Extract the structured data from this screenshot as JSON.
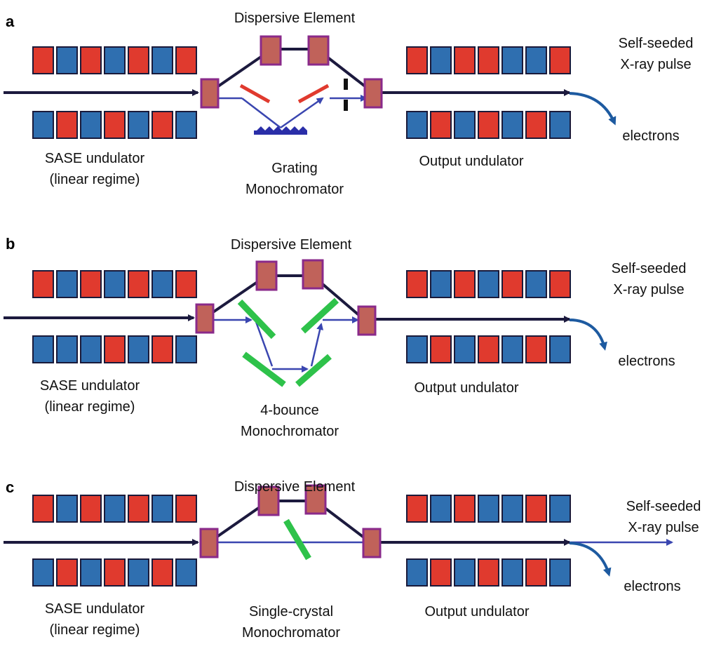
{
  "colors": {
    "magnet_red": "#e03a2e",
    "magnet_blue": "#2f6fb0",
    "magnet_border": "#1a1a3a",
    "chicane_fill": "#c0625a",
    "chicane_border": "#8a2a8a",
    "electron_beam": "#1c1a3e",
    "xray_beam": "#3a46b0",
    "crystal": "#2ec24a",
    "grating": "#2a2ea8",
    "arrow_curve": "#1d5aa0"
  },
  "panels": [
    {
      "letter": "a",
      "dispersive_label": "Dispersive Element",
      "mono_line1": "Grating",
      "mono_line2": "Monochromator",
      "sase_line1": "SASE undulator",
      "sase_line2": "(linear regime)",
      "output_label": "Output undulator",
      "pulse_line1": "Self-seeded",
      "pulse_line2": "X-ray pulse",
      "electrons_label": "electrons",
      "mono_type": "grating",
      "top_pattern_left": [
        "r",
        "b",
        "r",
        "b",
        "r",
        "b",
        "r"
      ],
      "bottom_pattern_left": [
        "b",
        "r",
        "b",
        "r",
        "b",
        "r",
        "b"
      ],
      "top_pattern_right": [
        "r",
        "b",
        "r",
        "r",
        "b",
        "b",
        "r"
      ],
      "bottom_pattern_right": [
        "b",
        "r",
        "b",
        "r",
        "b",
        "r",
        "b"
      ]
    },
    {
      "letter": "b",
      "dispersive_label": "Dispersive Element",
      "mono_line1": "4-bounce",
      "mono_line2": "Monochromator",
      "sase_line1": "SASE undulator",
      "sase_line2": "(linear regime)",
      "output_label": "Output undulator",
      "pulse_line1": "Self-seeded",
      "pulse_line2": "X-ray pulse",
      "electrons_label": "electrons",
      "mono_type": "four-bounce",
      "top_pattern_left": [
        "r",
        "b",
        "r",
        "b",
        "r",
        "b",
        "r"
      ],
      "bottom_pattern_left": [
        "b",
        "b",
        "b",
        "r",
        "b",
        "r",
        "b"
      ],
      "top_pattern_right": [
        "r",
        "b",
        "r",
        "b",
        "r",
        "b",
        "r"
      ],
      "bottom_pattern_right": [
        "b",
        "r",
        "b",
        "r",
        "b",
        "r",
        "b"
      ]
    },
    {
      "letter": "c",
      "dispersive_label": "Dispersive Element",
      "mono_line1": "Single-crystal",
      "mono_line2": "Monochromator",
      "sase_line1": "SASE undulator",
      "sase_line2": "(linear regime)",
      "output_label": "Output undulator",
      "pulse_line1": "Self-seeded",
      "pulse_line2": "X-ray pulse",
      "electrons_label": "electrons",
      "mono_type": "single-crystal",
      "top_pattern_left": [
        "r",
        "b",
        "r",
        "b",
        "r",
        "b",
        "r"
      ],
      "bottom_pattern_left": [
        "b",
        "r",
        "b",
        "r",
        "b",
        "r",
        "b"
      ],
      "top_pattern_right": [
        "r",
        "b",
        "r",
        "b",
        "b",
        "r",
        "b"
      ],
      "bottom_pattern_right": [
        "b",
        "r",
        "b",
        "r",
        "b",
        "r",
        "b"
      ]
    }
  ]
}
